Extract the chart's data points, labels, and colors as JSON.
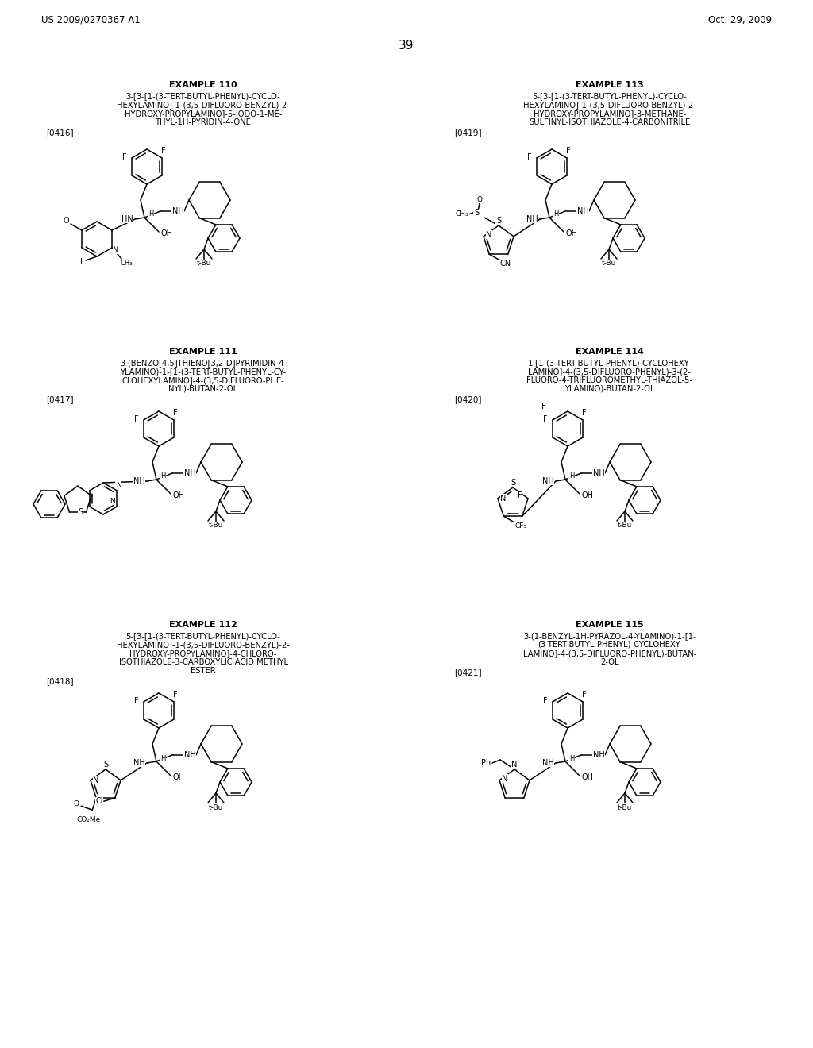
{
  "background_color": "#ffffff",
  "page_header_left": "US 2009/0270367 A1",
  "page_header_right": "Oct. 29, 2009",
  "page_number": "39",
  "font_size_header": 8.5,
  "font_size_example_title": 8.0,
  "font_size_name": 7.2,
  "font_size_ref": 7.5,
  "font_size_page_num": 11
}
